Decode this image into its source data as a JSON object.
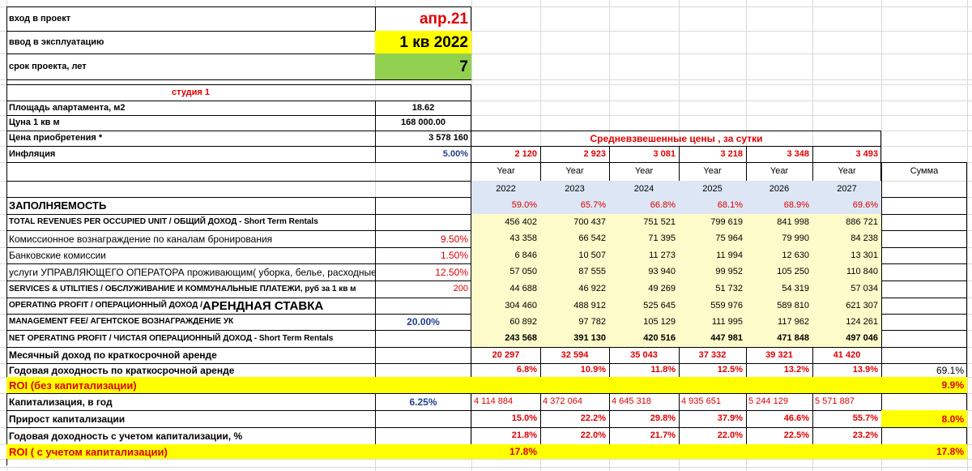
{
  "header": {
    "entry_label": "вход в проект",
    "entry_value": "апр.21",
    "launch_label": "ввод в эксплуатацию",
    "launch_value": "1 кв 2022",
    "term_label": "срок проекта, лет",
    "term_value": "7"
  },
  "unit": {
    "title": "студия 1",
    "area_label": "Площадь апартамента, м2",
    "area_value": "18.62",
    "price_m2_label": "Цуна 1 кв м",
    "price_m2_value": "168 000.00",
    "purchase_label": "Цена приобретения *",
    "purchase_value": "3 578 160",
    "inflation_label": "Инфляция",
    "inflation_value": "5.00%"
  },
  "avg_prices_header": "Средневзвешенные  цены ,  за сутки",
  "avg_prices": [
    "2 120",
    "2 923",
    "3 081",
    "3 218",
    "3 348",
    "3 493"
  ],
  "year_word": "Year",
  "years": [
    "2022",
    "2023",
    "2024",
    "2025",
    "2026",
    "2027"
  ],
  "sum_label": "Сумма",
  "occupancy": {
    "label": "ЗАПОЛНЯЕМОСТЬ",
    "values": [
      "59.0%",
      "65.7%",
      "66.8%",
      "68.1%",
      "68.9%",
      "69.6%"
    ]
  },
  "revenues": {
    "label": "TOTAL REVENUES PER OCCUPIED UNIT / ОБЩИЙ ДОХОД - Short Term Rentals",
    "values": [
      "456 402",
      "700 437",
      "751 521",
      "799 619",
      "841 998",
      "886 721"
    ]
  },
  "booking_fee": {
    "label": "Комиссионное вознаграждение по каналам бронирования",
    "rate": "9.50%",
    "values": [
      "43 358",
      "66 542",
      "71 395",
      "75 964",
      "79 990",
      "84 238"
    ]
  },
  "bank_fee": {
    "label": "Банковские комиссии",
    "rate": "1.50%",
    "values": [
      "6 846",
      "10 507",
      "11 273",
      "11 994",
      "12 630",
      "13 301"
    ]
  },
  "operator_services": {
    "label": "услуги УПРАВЛЯЮЩЕГО ОПЕРАТОРА проживающим( уборка, белье, расходные",
    "rate": "12.50%",
    "values": [
      "57 050",
      "87 555",
      "93 940",
      "99 952",
      "105 250",
      "110 840"
    ]
  },
  "utilities": {
    "label": "SERVICES & UTILITIES / ОБСЛУЖИВАНИЕ И КОММУНАЛЬНЫЕ ПЛАТЕЖИ, руб за 1 кв м",
    "rate": "200",
    "values": [
      "44 688",
      "46 922",
      "49 269",
      "51 732",
      "54 319",
      "57 034"
    ]
  },
  "operating_profit": {
    "label": "OPERATING PROFIT / ОПЕРАЦИОННЫЙ ДОХОД /",
    "label_big": "АРЕНДНАЯ СТАВКА",
    "values": [
      "304 460",
      "488 912",
      "525 645",
      "559 976",
      "589 810",
      "621 307"
    ]
  },
  "management_fee": {
    "label": "MANAGEMENT FEE/ АГЕНТСКОЕ ВОЗНАГРАЖДЕНИЕ УК",
    "rate": "20.00%",
    "values": [
      "60 892",
      "97 782",
      "105 129",
      "111 995",
      "117 962",
      "124 261"
    ]
  },
  "net_operating_profit": {
    "label": "NET OPERATING PROFIT / ЧИСТАЯ ОПЕРАЦИОННЫЙ ДОХОД - Short Term Rentals",
    "values": [
      "243 568",
      "391 130",
      "420 516",
      "447 981",
      "471 848",
      "497 046"
    ]
  },
  "monthly_income": {
    "label": "Месячный доход по краткосрочной аренде",
    "values": [
      "20 297",
      "32 594",
      "35 043",
      "37 332",
      "39 321",
      "41 420"
    ]
  },
  "annual_yield": {
    "label": "Годовая доходность по краткосрочной аренде",
    "values": [
      "6.8%",
      "10.9%",
      "11.8%",
      "12.5%",
      "13.2%",
      "13.9%"
    ],
    "sum": "69.1%"
  },
  "roi_no_cap": {
    "label": "ROI (без капитализации)",
    "sum": "9.9%"
  },
  "capitalization": {
    "label": "Капитализация, в год",
    "rate": "6.25%",
    "values": [
      "4 114 884",
      "4 372 064",
      "4 645 318",
      "4 935 651",
      "5 244 129",
      "5 571 887"
    ]
  },
  "cap_growth": {
    "label": "Прирост капитализации",
    "values": [
      "15.0%",
      "22.2%",
      "29.8%",
      "37.9%",
      "46.6%",
      "55.7%"
    ],
    "sum": "8.0%"
  },
  "yield_with_cap": {
    "label": "Годовая доходность с учетом капитализации, %",
    "values": [
      "21.8%",
      "22.0%",
      "21.7%",
      "22.0%",
      "22.5%",
      "23.2%"
    ]
  },
  "roi_with_cap": {
    "label": "ROI ( с учетом капитализации)",
    "first": "17.8%",
    "sum": "17.8%"
  }
}
